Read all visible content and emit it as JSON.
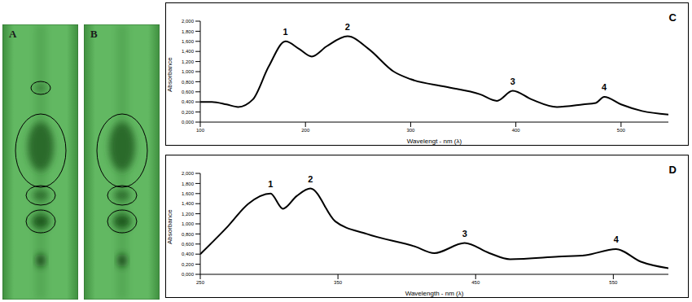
{
  "plates": [
    {
      "label": "A"
    },
    {
      "label": "B"
    }
  ],
  "chart_data": [
    {
      "type": "line",
      "title": "C",
      "x_label": "Wavelengt - nm (λ)",
      "y_label": "Absorbance",
      "x": [
        100,
        111,
        125,
        136,
        150,
        165,
        181,
        194,
        206,
        220,
        240,
        260,
        284,
        300,
        333,
        366,
        382,
        397,
        415,
        439,
        464,
        476,
        484,
        500,
        520,
        545
      ],
      "series": [
        {
          "color": "#000000",
          "values": [
            0.4,
            0.4,
            0.35,
            0.3,
            0.45,
            1.1,
            1.6,
            1.45,
            1.3,
            1.5,
            1.7,
            1.45,
            1.0,
            0.85,
            0.7,
            0.55,
            0.42,
            0.62,
            0.45,
            0.3,
            0.35,
            0.38,
            0.5,
            0.35,
            0.22,
            0.15
          ]
        }
      ],
      "xlim": [
        100,
        545
      ],
      "xticks": [
        100,
        200,
        300,
        400,
        500
      ],
      "ylim": [
        0,
        2
      ],
      "yticks": [
        {
          "value": 0,
          "label": "0,000"
        },
        {
          "value": 0.2,
          "label": "0,200"
        },
        {
          "value": 0.4,
          "label": "0,400"
        },
        {
          "value": 0.6,
          "label": "0,600"
        },
        {
          "value": 0.8,
          "label": "0,800"
        },
        {
          "value": 1,
          "label": "1,000"
        },
        {
          "value": 1.2,
          "label": "1,200"
        },
        {
          "value": 1.4,
          "label": "1,400"
        },
        {
          "value": 1.6,
          "label": "1,600"
        },
        {
          "value": 1.8,
          "label": "1,800"
        },
        {
          "value": 2,
          "label": "2,000"
        }
      ],
      "annotations": [
        {
          "text": "1",
          "x": 181,
          "y": 1.6
        },
        {
          "text": "2",
          "x": 240,
          "y": 1.7
        },
        {
          "text": "3",
          "x": 397,
          "y": 0.62
        },
        {
          "text": "4",
          "x": 484,
          "y": 0.5
        }
      ],
      "grid": false
    },
    {
      "type": "line",
      "title": "D",
      "x_label": "Wavelength - nm (λ)",
      "y_label": "Absorbance",
      "x": [
        250,
        270,
        285,
        301,
        310,
        320,
        330,
        348,
        371,
        406,
        420,
        442,
        460,
        475,
        510,
        530,
        552,
        570,
        590
      ],
      "series": [
        {
          "color": "#000000",
          "values": [
            0.4,
            0.95,
            1.4,
            1.6,
            1.3,
            1.55,
            1.7,
            1.05,
            0.8,
            0.55,
            0.42,
            0.62,
            0.42,
            0.3,
            0.35,
            0.38,
            0.5,
            0.25,
            0.12
          ]
        }
      ],
      "xlim": [
        250,
        590
      ],
      "xticks": [
        250,
        350,
        450,
        550
      ],
      "ylim": [
        0,
        2
      ],
      "yticks": [
        {
          "value": 0,
          "label": "0,000"
        },
        {
          "value": 0.2,
          "label": "0,200"
        },
        {
          "value": 0.4,
          "label": "0,400"
        },
        {
          "value": 0.6,
          "label": "0,600"
        },
        {
          "value": 0.8,
          "label": "0,800"
        },
        {
          "value": 1,
          "label": "1,000"
        },
        {
          "value": 1.2,
          "label": "1,200"
        },
        {
          "value": 1.4,
          "label": "1,400"
        },
        {
          "value": 1.6,
          "label": "1,600"
        },
        {
          "value": 1.8,
          "label": "1,800"
        },
        {
          "value": 2,
          "label": "2,000"
        }
      ],
      "annotations": [
        {
          "text": "1",
          "x": 301,
          "y": 1.6
        },
        {
          "text": "2",
          "x": 330,
          "y": 1.7
        },
        {
          "text": "3",
          "x": 442,
          "y": 0.62
        },
        {
          "text": "4",
          "x": 552,
          "y": 0.5
        }
      ],
      "grid": false
    }
  ]
}
